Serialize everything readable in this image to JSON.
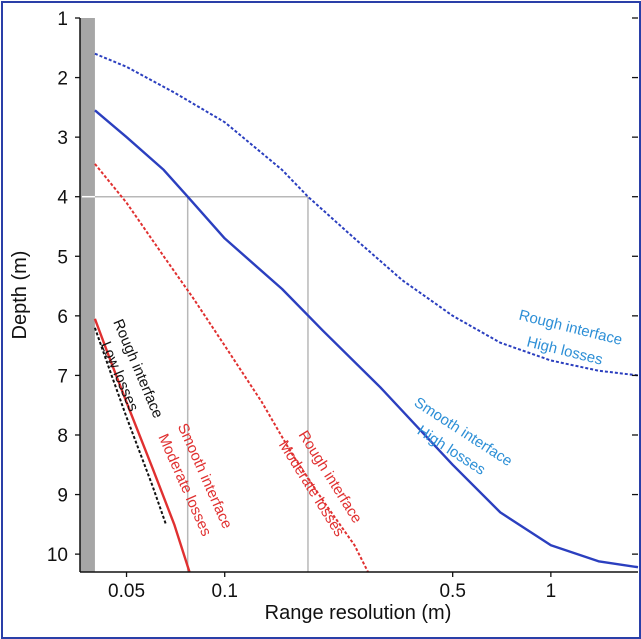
{
  "chart_data": {
    "type": "line",
    "xlabel": "Range resolution (m)",
    "ylabel": "Depth  (m)",
    "x_scale": "log",
    "y_inverted": true,
    "xlim": [
      0.036,
      1.85
    ],
    "ylim": [
      1,
      10.3
    ],
    "x_ticks": [
      {
        "value": 0.05,
        "label": "0.05"
      },
      {
        "value": 0.1,
        "label": "0.1"
      },
      {
        "value": 0.5,
        "label": "0.5"
      },
      {
        "value": 1,
        "label": "1"
      }
    ],
    "y_ticks": [
      {
        "value": 1,
        "label": "1"
      },
      {
        "value": 2,
        "label": "2"
      },
      {
        "value": 3,
        "label": "3"
      },
      {
        "value": 4,
        "label": "4"
      },
      {
        "value": 5,
        "label": "5"
      },
      {
        "value": 6,
        "label": "6"
      },
      {
        "value": 7,
        "label": "7"
      },
      {
        "value": 8,
        "label": "8"
      },
      {
        "value": 9,
        "label": "9"
      },
      {
        "value": 10,
        "label": "10"
      }
    ],
    "shaded_region": {
      "x_from": 0.036,
      "x_to": 0.04,
      "color": "#a6a6a6"
    },
    "reference_lines": {
      "depth": 4,
      "x_values": [
        0.077,
        0.18
      ],
      "color": "#b8b8b8"
    },
    "series": [
      {
        "name": "Rough interface High losses",
        "color": "#2b3fbf",
        "dash": true,
        "points": [
          [
            0.04,
            1.6
          ],
          [
            0.05,
            1.82
          ],
          [
            0.07,
            2.25
          ],
          [
            0.1,
            2.75
          ],
          [
            0.15,
            3.55
          ],
          [
            0.18,
            4.0
          ],
          [
            0.25,
            4.7
          ],
          [
            0.35,
            5.4
          ],
          [
            0.5,
            6.0
          ],
          [
            0.7,
            6.45
          ],
          [
            1.0,
            6.75
          ],
          [
            1.4,
            6.92
          ],
          [
            1.85,
            7.0
          ]
        ]
      },
      {
        "name": "Smooth interface High losses",
        "color": "#2b3fbf",
        "dash": false,
        "points": [
          [
            0.04,
            2.55
          ],
          [
            0.05,
            3.0
          ],
          [
            0.065,
            3.55
          ],
          [
            0.077,
            4.0
          ],
          [
            0.1,
            4.7
          ],
          [
            0.15,
            5.55
          ],
          [
            0.2,
            6.25
          ],
          [
            0.3,
            7.2
          ],
          [
            0.5,
            8.5
          ],
          [
            0.7,
            9.3
          ],
          [
            1.0,
            9.85
          ],
          [
            1.4,
            10.12
          ],
          [
            1.85,
            10.22
          ]
        ]
      },
      {
        "name": "Rough interface Moderate losses",
        "color": "#e03030",
        "dash": true,
        "points": [
          [
            0.04,
            3.45
          ],
          [
            0.05,
            4.1
          ],
          [
            0.065,
            5.0
          ],
          [
            0.08,
            5.7
          ],
          [
            0.1,
            6.5
          ],
          [
            0.13,
            7.45
          ],
          [
            0.16,
            8.3
          ],
          [
            0.2,
            9.1
          ],
          [
            0.25,
            9.85
          ],
          [
            0.275,
            10.3
          ]
        ]
      },
      {
        "name": "Smooth interface Moderate losses",
        "color": "#e03030",
        "dash": false,
        "points": [
          [
            0.04,
            6.05
          ],
          [
            0.045,
            6.8
          ],
          [
            0.05,
            7.45
          ],
          [
            0.06,
            8.55
          ],
          [
            0.07,
            9.5
          ],
          [
            0.078,
            10.3
          ]
        ]
      },
      {
        "name": "Rough interface Low losses",
        "color": "#111111",
        "dash": true,
        "points": [
          [
            0.04,
            6.2
          ],
          [
            0.045,
            7.0
          ],
          [
            0.05,
            7.7
          ],
          [
            0.06,
            8.85
          ],
          [
            0.066,
            9.5
          ]
        ]
      }
    ],
    "annotations": [
      {
        "lines": [
          "Rough interface",
          "High losses"
        ],
        "color": "#2d8fd6"
      },
      {
        "lines": [
          "Smooth interface",
          "High losses"
        ],
        "color": "#2d8fd6"
      },
      {
        "lines": [
          "Rough interface",
          "Moderate losses"
        ],
        "color": "#e03030"
      },
      {
        "lines": [
          "Smooth interface",
          "Moderate losses"
        ],
        "color": "#e03030"
      },
      {
        "lines": [
          "Rough interface",
          "Low losses"
        ],
        "color": "#111111"
      }
    ]
  }
}
